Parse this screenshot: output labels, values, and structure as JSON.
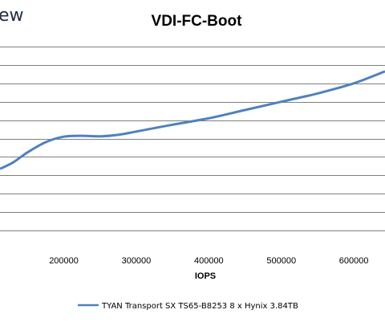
{
  "corner_text": "ew",
  "chart_data": {
    "type": "line",
    "title": "VDI-FC-Boot",
    "xlabel": "IOPS",
    "ylabel": "",
    "x_ticks": [
      200000,
      300000,
      400000,
      500000,
      600000
    ],
    "x_tick_labels": [
      "200000",
      "300000",
      "400000",
      "500000",
      "600000"
    ],
    "xlim": [
      112000,
      643000
    ],
    "ylim": [
      0,
      12
    ],
    "grid": true,
    "legend_position": "bottom",
    "series": [
      {
        "name": "TYAN Transport SX TS65-B8253 8 x Hynix 3.84TB",
        "color": "#4f81bd",
        "x": [
          112000,
          130000,
          150000,
          175000,
          200000,
          225000,
          250000,
          275000,
          300000,
          350000,
          400000,
          450000,
          500000,
          550000,
          600000,
          643000
        ],
        "y": [
          4.35,
          4.7,
          5.25,
          5.8,
          6.1,
          6.15,
          6.12,
          6.2,
          6.38,
          6.75,
          7.1,
          7.55,
          8.0,
          8.45,
          9.0,
          9.65
        ]
      }
    ]
  }
}
